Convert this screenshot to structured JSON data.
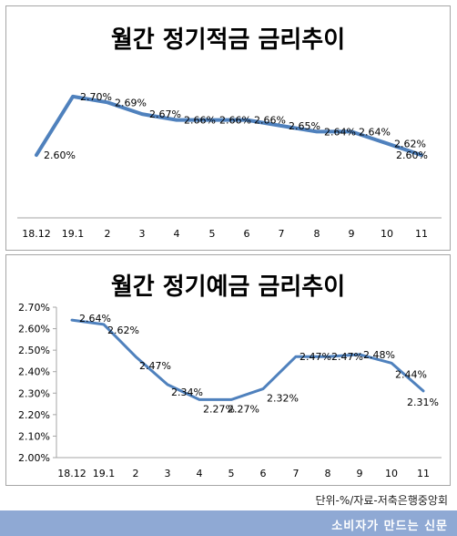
{
  "chart_data": [
    {
      "type": "line",
      "title": "월간 정기적금 금리추이",
      "categories": [
        "18.12",
        "19.1",
        "2",
        "3",
        "4",
        "5",
        "6",
        "7",
        "8",
        "9",
        "10",
        "11"
      ],
      "values": [
        2.6,
        2.7,
        2.69,
        2.67,
        2.66,
        2.66,
        2.66,
        2.65,
        2.64,
        2.64,
        2.62,
        2.6
      ],
      "data_labels": [
        "2.60%",
        "2.70%",
        "2.69%",
        "2.67%",
        "2.66%",
        "2.66%",
        "2.66%",
        "2.65%",
        "2.64%",
        "2.64%",
        "2.62%",
        "2.60%"
      ],
      "ylim": [
        2.58,
        2.72
      ],
      "y_axis_visible": false,
      "grid": false,
      "line_color": "#4f81bd"
    },
    {
      "type": "line",
      "title": "월간 정기예금 금리추이",
      "categories": [
        "18.12",
        "19.1",
        "2",
        "3",
        "4",
        "5",
        "6",
        "7",
        "8",
        "9",
        "10",
        "11"
      ],
      "values": [
        2.64,
        2.62,
        2.47,
        2.34,
        2.27,
        2.27,
        2.32,
        2.47,
        2.47,
        2.48,
        2.44,
        2.31
      ],
      "data_labels": [
        "2.64%",
        "2.62%",
        "2.47%",
        "2.34%",
        "2.27%",
        "2.27%",
        "2.32%",
        "2.47%",
        "2.47%",
        "2.48%",
        "2.44%",
        "2.31%"
      ],
      "ylim": [
        2.0,
        2.7
      ],
      "yticks": [
        "2.00%",
        "2.10%",
        "2.20%",
        "2.30%",
        "2.40%",
        "2.50%",
        "2.60%",
        "2.70%"
      ],
      "grid": false,
      "line_color": "#4f81bd"
    }
  ],
  "source_note": "단위-%/자료-저축은행중앙회",
  "footer_text": "소비자가 만드는 신문"
}
